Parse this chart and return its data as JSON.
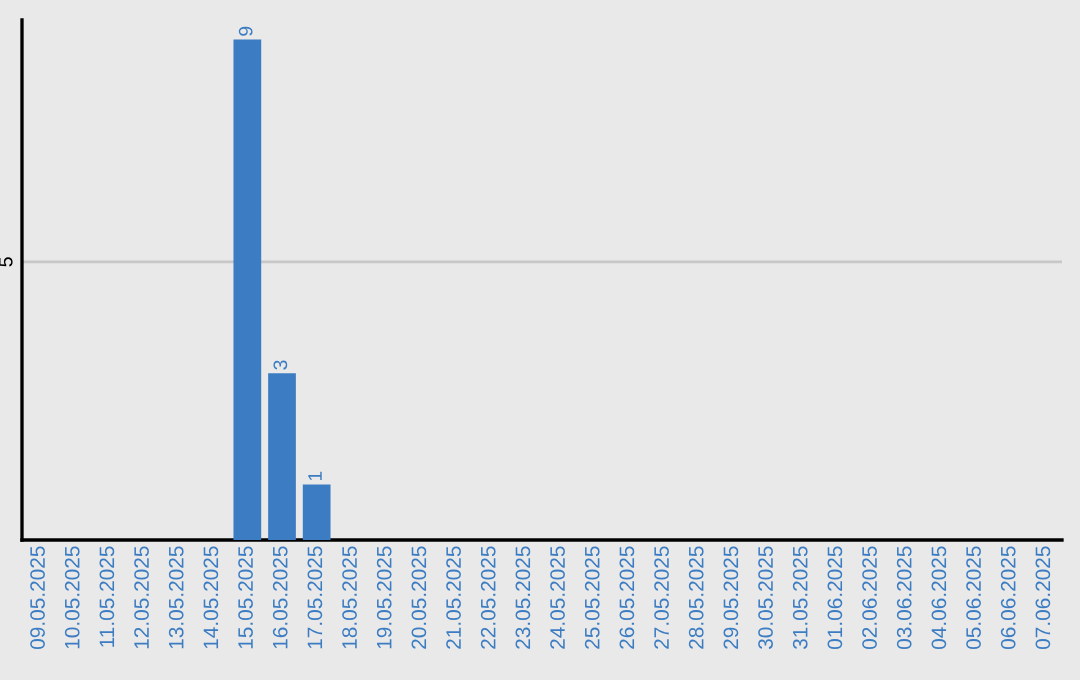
{
  "chart_data": {
    "type": "bar",
    "categories": [
      "09.05.2025",
      "10.05.2025",
      "11.05.2025",
      "12.05.2025",
      "13.05.2025",
      "14.05.2025",
      "15.05.2025",
      "16.05.2025",
      "17.05.2025",
      "18.05.2025",
      "19.05.2025",
      "20.05.2025",
      "21.05.2025",
      "22.05.2025",
      "23.05.2025",
      "24.05.2025",
      "25.05.2025",
      "26.05.2025",
      "27.05.2025",
      "28.05.2025",
      "29.05.2025",
      "30.05.2025",
      "31.05.2025",
      "01.06.2025",
      "02.06.2025",
      "03.06.2025",
      "04.06.2025",
      "05.06.2025",
      "06.06.2025",
      "07.06.2025"
    ],
    "values": [
      0,
      0,
      0,
      0,
      0,
      0,
      9,
      3,
      1,
      0,
      0,
      0,
      0,
      0,
      0,
      0,
      0,
      0,
      0,
      0,
      0,
      0,
      0,
      0,
      0,
      0,
      0,
      0,
      0,
      0
    ],
    "value_labels": [
      null,
      null,
      null,
      null,
      null,
      null,
      "9",
      "3",
      "1",
      null,
      null,
      null,
      null,
      null,
      null,
      null,
      null,
      null,
      null,
      null,
      null,
      null,
      null,
      null,
      null,
      null,
      null,
      null,
      null,
      null
    ],
    "color": "#3b7cc2",
    "ylim": [
      0,
      9.35
    ],
    "yticks": [
      5
    ],
    "grid": "y"
  }
}
